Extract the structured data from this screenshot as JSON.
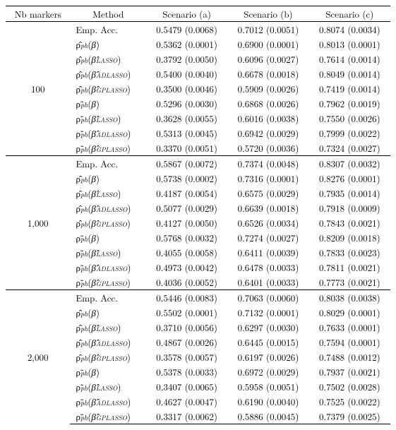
{
  "headers": {
    "nb": "Nb markers",
    "method": "Method",
    "sa": "Scenario (a)",
    "sb": "Scenario (b)",
    "sc": "Scenario (c)"
  },
  "methods": [
    "Emp. Acc.",
    "ρ̂ph(β)",
    "ρ̂ph(β̂LASSO)",
    "ρ̂ph(β̂ADLASSO)",
    "ρ̂ph(β̂GPLASSO)",
    "ρ̃ph(β)",
    "ρ̃ph(β̂LASSO)",
    "ρ̃ph(β̂ADLASSO)",
    "ρ̃ph(β̂GPLASSO)"
  ],
  "groups": [
    {
      "nb": "100",
      "rows": [
        {
          "a": "0.5479 (0.0068)",
          "b": "0.7012 (0.0051)",
          "c": "0.8074 (0.0034)"
        },
        {
          "a": "0.5362 (0.0001)",
          "b": "0.6900 (0.0001)",
          "c": "0.8013 (0.0001)"
        },
        {
          "a": "0.3792 (0.0050)",
          "b": "0.6096 (0.0027)",
          "c": "0.7614 (0.0014)"
        },
        {
          "a": "0.5400 (0.0040)",
          "b": "0.6678 (0.0018)",
          "c": "0.8049 (0.0014)"
        },
        {
          "a": "0.3500 (0.0046)",
          "b": "0.5909 (0.0026)",
          "c": "0.7419 (0.0014)"
        },
        {
          "a": "0.5296 (0.0030)",
          "b": "0.6868 (0.0026)",
          "c": "0.7962 (0.0019)"
        },
        {
          "a": "0.3628 (0.0055)",
          "b": "0.6016 (0.0038)",
          "c": "0.7550 (0.0026)"
        },
        {
          "a": "0.5313 (0.0045)",
          "b": "0.6942 (0.0029)",
          "c": "0.7999 (0.0022)"
        },
        {
          "a": "0.3370 (0.0051)",
          "b": "0.5720 (0.0036)",
          "c": "0.7324 (0.0027)"
        }
      ]
    },
    {
      "nb": "1,000",
      "rows": [
        {
          "a": "0.5867 (0.0072)",
          "b": "0.7374 (0.0048)",
          "c": "0.8307 (0.0032)"
        },
        {
          "a": "0.5738 (0.0002)",
          "b": "0.7316 (0.0001)",
          "c": "0.8276 (0.0001)"
        },
        {
          "a": "0.4187 (0.0054)",
          "b": "0.6575 (0.0029)",
          "c": "0.7935 (0.0014)"
        },
        {
          "a": "0.5077 (0.0029)",
          "b": "0.6639 (0.0018)",
          "c": "0.7918 (0.0009)"
        },
        {
          "a": "0.4127 (0.0050)",
          "b": "0.6526 (0.0034)",
          "c": "0.7843 (0.0021)"
        },
        {
          "a": "0.5768 (0.0032)",
          "b": "0.7274 (0.0027)",
          "c": "0.8209 (0.0018)"
        },
        {
          "a": "0.4055 (0.0058)",
          "b": "0.6411 (0.0039)",
          "c": "0.7833 (0.0023)"
        },
        {
          "a": "0.4973 (0.0042)",
          "b": "0.6478 (0.0033)",
          "c": "0.7811 (0.0021)"
        },
        {
          "a": "0.4036 (0.0052)",
          "b": "0.6401 (0.0033)",
          "c": "0.7773 (0.0021)"
        }
      ]
    },
    {
      "nb": "2,000",
      "rows": [
        {
          "a": "0.5446 (0.0083)",
          "b": "0.7063 (0.0060)",
          "c": "0.8038 (0.0038)"
        },
        {
          "a": "0.5502 (0.0001)",
          "b": "0.7132 (0.0001)",
          "c": "0.8029 (0.0001)"
        },
        {
          "a": "0.3710 (0.0056)",
          "b": "0.6297 (0.0030)",
          "c": "0.7633 (0.0001)"
        },
        {
          "a": "0.4867 (0.0026)",
          "b": "0.6445 (0.0015)",
          "c": "0.7594 (0.0001)"
        },
        {
          "a": "0.3578 (0.0057)",
          "b": "0.6197 (0.0026)",
          "c": "0.7488 (0.0012)"
        },
        {
          "a": "0.5378 (0.0033)",
          "b": "0.6972 (0.0029)",
          "c": "0.7937 (0.0021)"
        },
        {
          "a": "0.3407 (0.0065)",
          "b": "0.5958 (0.0051)",
          "c": "0.7502 (0.0028)"
        },
        {
          "a": "0.4627 (0.0047)",
          "b": "0.6190 (0.0040)",
          "c": "0.7525 (0.0022)"
        },
        {
          "a": "0.3317 (0.0062)",
          "b": "0.5886 (0.0045)",
          "c": "0.7379 (0.0025)"
        }
      ]
    }
  ],
  "method_html": [
    "Emp. Acc.",
    "<span>ρ̂</span><span class=\"sub\">ph</span>(<i>β</i>)",
    "<span>ρ̂</span><span class=\"sub\">ph</span>(<i>β̂</i><span class=\"subcap\">LASSO</span>)",
    "<span>ρ̂</span><span class=\"sub\">ph</span>(<i>β̂</i><span class=\"subcap\">ADLASSO</span>)",
    "<span>ρ̂</span><span class=\"sub\">ph</span>(<i>β̂</i><span class=\"subcap\">GPLASSO</span>)",
    "<span>ρ̃</span><span class=\"sub\">ph</span>(<i>β</i>)",
    "<span>ρ̃</span><span class=\"sub\">ph</span>(<i>β̂</i><span class=\"subcap\">LASSO</span>)",
    "<span>ρ̃</span><span class=\"sub\">ph</span>(<i>β̂</i><span class=\"subcap\">ADLASSO</span>)",
    "<span>ρ̃</span><span class=\"sub\">ph</span>(<i>β̂</i><span class=\"subcap\">GPLASSO</span>)"
  ]
}
